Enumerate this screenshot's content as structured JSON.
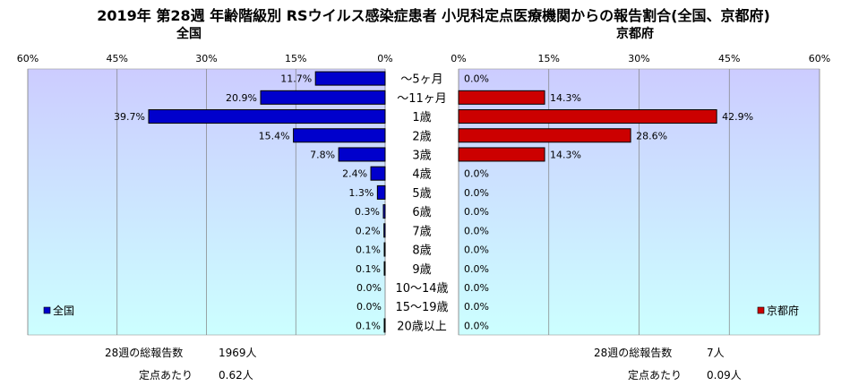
{
  "title": "2019年 第28週 年齢階級別 RSウイルス感染症患者 小児科定点医療機関からの報告割合(全国、京都府)",
  "colors": {
    "national": "#0000cc",
    "kyoto": "#cc0000",
    "plot_bg_top": "#ccccff",
    "plot_bg_bottom": "#ccffff"
  },
  "chart_data": [
    {
      "type": "bar",
      "orientation": "horizontal",
      "direction": "leftward",
      "subtitle": "全国",
      "legend": "全国",
      "legend_position": "bottom-left",
      "xlim": [
        0,
        60
      ],
      "ticks": [
        "60%",
        "45%",
        "30%",
        "15%",
        "0%"
      ],
      "categories": [
        "～5ヶ月",
        "～11ヶ月",
        "1歳",
        "2歳",
        "3歳",
        "4歳",
        "5歳",
        "6歳",
        "7歳",
        "8歳",
        "9歳",
        "10～14歳",
        "15～19歳",
        "20歳以上"
      ],
      "values": [
        11.7,
        20.9,
        39.7,
        15.4,
        7.8,
        2.4,
        1.3,
        0.3,
        0.2,
        0.1,
        0.1,
        0.0,
        0.0,
        0.1
      ],
      "labels": [
        "11.7%",
        "20.9%",
        "39.7%",
        "15.4%",
        "7.8%",
        "2.4%",
        "1.3%",
        "0.3%",
        "0.2%",
        "0.1%",
        "0.1%",
        "0.0%",
        "0.0%",
        "0.1%"
      ],
      "grid": true
    },
    {
      "type": "bar",
      "orientation": "horizontal",
      "direction": "rightward",
      "subtitle": "京都府",
      "legend": "京都府",
      "legend_position": "bottom-right",
      "xlim": [
        0,
        60
      ],
      "ticks": [
        "0%",
        "15%",
        "30%",
        "45%",
        "60%"
      ],
      "categories": [
        "～5ヶ月",
        "～11ヶ月",
        "1歳",
        "2歳",
        "3歳",
        "4歳",
        "5歳",
        "6歳",
        "7歳",
        "8歳",
        "9歳",
        "10～14歳",
        "15～19歳",
        "20歳以上"
      ],
      "values": [
        0.0,
        14.3,
        42.9,
        28.6,
        14.3,
        0.0,
        0.0,
        0.0,
        0.0,
        0.0,
        0.0,
        0.0,
        0.0,
        0.0
      ],
      "labels": [
        "0.0%",
        "14.3%",
        "42.9%",
        "28.6%",
        "14.3%",
        "0.0%",
        "0.0%",
        "0.0%",
        "0.0%",
        "0.0%",
        "0.0%",
        "0.0%",
        "0.0%",
        "0.0%"
      ],
      "grid": true
    }
  ],
  "footer": {
    "national": {
      "total_label": "28週の総報告数",
      "total_value": "1969人",
      "per_label": "定点あたり",
      "per_value": "0.62人"
    },
    "kyoto": {
      "total_label": "28週の総報告数",
      "total_value": "7人",
      "per_label": "定点あたり",
      "per_value": "0.09人"
    }
  }
}
